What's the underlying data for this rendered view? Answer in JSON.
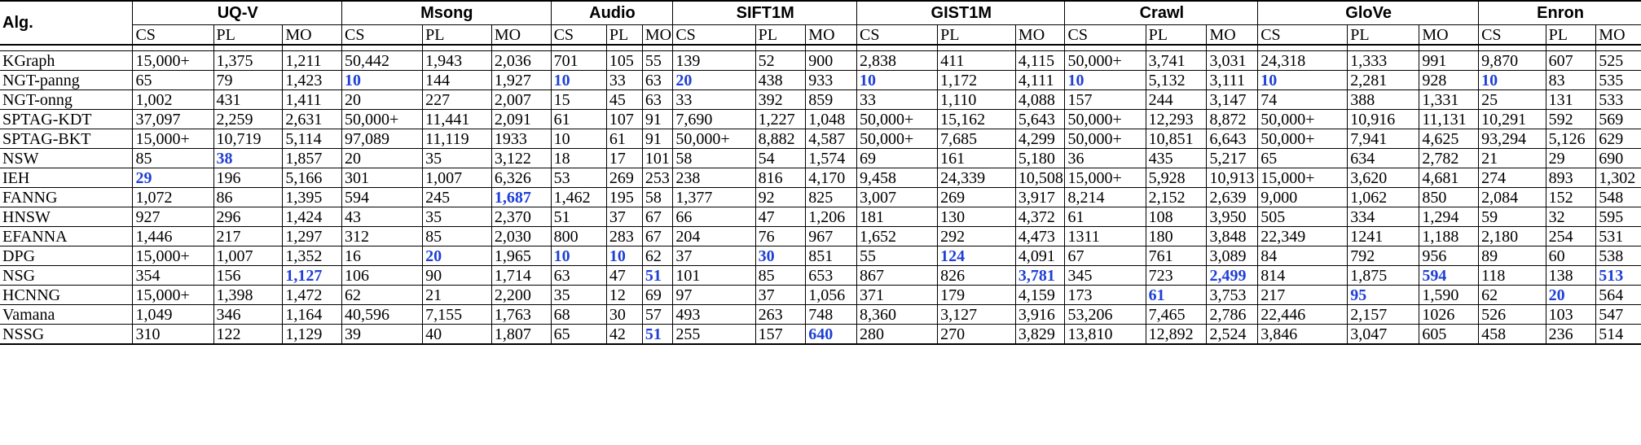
{
  "table": {
    "header_label": "Alg.",
    "datasets": [
      "UQ-V",
      "Msong",
      "Audio",
      "SIFT1M",
      "GIST1M",
      "Crawl",
      "GloVe",
      "Enron"
    ],
    "subcolumns": [
      "CS",
      "PL",
      "MO"
    ],
    "highlight_color": "#1f3fd6",
    "rows": [
      {
        "alg": "KGraph",
        "cells": [
          "15,000+",
          "1,375",
          "1,211",
          "50,442",
          "1,943",
          "2,036",
          "701",
          "105",
          "55",
          "139",
          "52",
          "900",
          "2,838",
          "411",
          "4,115",
          "50,000+",
          "3,741",
          "3,031",
          "24,318",
          "1,333",
          "991",
          "9,870",
          "607",
          "525"
        ],
        "best": []
      },
      {
        "alg": "NGT-panng",
        "cells": [
          "65",
          "79",
          "1,423",
          "10",
          "144",
          "1,927",
          "10",
          "33",
          "63",
          "20",
          "438",
          "933",
          "10",
          "1,172",
          "4,111",
          "10",
          "5,132",
          "3,111",
          "10",
          "2,281",
          "928",
          "10",
          "83",
          "535"
        ],
        "best": [
          3,
          6,
          9,
          12,
          15,
          18,
          21
        ]
      },
      {
        "alg": "NGT-onng",
        "cells": [
          "1,002",
          "431",
          "1,411",
          "20",
          "227",
          "2,007",
          "15",
          "45",
          "63",
          "33",
          "392",
          "859",
          "33",
          "1,110",
          "4,088",
          "157",
          "244",
          "3,147",
          "74",
          "388",
          "1,331",
          "25",
          "131",
          "533"
        ],
        "best": []
      },
      {
        "alg": "SPTAG-KDT",
        "cells": [
          "37,097",
          "2,259",
          "2,631",
          "50,000+",
          "11,441",
          "2,091",
          "61",
          "107",
          "91",
          "7,690",
          "1,227",
          "1,048",
          "50,000+",
          "15,162",
          "5,643",
          "50,000+",
          "12,293",
          "8,872",
          "50,000+",
          "10,916",
          "11,131",
          "10,291",
          "592",
          "569"
        ],
        "best": []
      },
      {
        "alg": "SPTAG-BKT",
        "cells": [
          "15,000+",
          "10,719",
          "5,114",
          "97,089",
          "11,119",
          "1933",
          "10",
          "61",
          "91",
          "50,000+",
          "8,882",
          "4,587",
          "50,000+",
          "7,685",
          "4,299",
          "50,000+",
          "10,851",
          "6,643",
          "50,000+",
          "7,941",
          "4,625",
          "93,294",
          "5,126",
          "629"
        ],
        "best": []
      },
      {
        "alg": "NSW",
        "cells": [
          "85",
          "38",
          "1,857",
          "20",
          "35",
          "3,122",
          "18",
          "17",
          "101",
          "58",
          "54",
          "1,574",
          "69",
          "161",
          "5,180",
          "36",
          "435",
          "5,217",
          "65",
          "634",
          "2,782",
          "21",
          "29",
          "690"
        ],
        "best": [
          1
        ]
      },
      {
        "alg": "IEH",
        "cells": [
          "29",
          "196",
          "5,166",
          "301",
          "1,007",
          "6,326",
          "53",
          "269",
          "253",
          "238",
          "816",
          "4,170",
          "9,458",
          "24,339",
          "10,508",
          "15,000+",
          "5,928",
          "10,913",
          "15,000+",
          "3,620",
          "4,681",
          "274",
          "893",
          "1,302"
        ],
        "best": [
          0
        ]
      },
      {
        "alg": "FANNG",
        "cells": [
          "1,072",
          "86",
          "1,395",
          "594",
          "245",
          "1,687",
          "1,462",
          "195",
          "58",
          "1,377",
          "92",
          "825",
          "3,007",
          "269",
          "3,917",
          "8,214",
          "2,152",
          "2,639",
          "9,000",
          "1,062",
          "850",
          "2,084",
          "152",
          "548"
        ],
        "best": [
          5
        ]
      },
      {
        "alg": "HNSW",
        "cells": [
          "927",
          "296",
          "1,424",
          "43",
          "35",
          "2,370",
          "51",
          "37",
          "67",
          "66",
          "47",
          "1,206",
          "181",
          "130",
          "4,372",
          "61",
          "108",
          "3,950",
          "505",
          "334",
          "1,294",
          "59",
          "32",
          "595"
        ],
        "best": []
      },
      {
        "alg": "EFANNA",
        "cells": [
          "1,446",
          "217",
          "1,297",
          "312",
          "85",
          "2,030",
          "800",
          "283",
          "67",
          "204",
          "76",
          "967",
          "1,652",
          "292",
          "4,473",
          "1311",
          "180",
          "3,848",
          "22,349",
          "1241",
          "1,188",
          "2,180",
          "254",
          "531"
        ],
        "best": []
      },
      {
        "alg": "DPG",
        "cells": [
          "15,000+",
          "1,007",
          "1,352",
          "16",
          "20",
          "1,965",
          "10",
          "10",
          "62",
          "37",
          "30",
          "851",
          "55",
          "124",
          "4,091",
          "67",
          "761",
          "3,089",
          "84",
          "792",
          "956",
          "89",
          "60",
          "538"
        ],
        "best": [
          4,
          6,
          7,
          10,
          13
        ]
      },
      {
        "alg": "NSG",
        "cells": [
          "354",
          "156",
          "1,127",
          "106",
          "90",
          "1,714",
          "63",
          "47",
          "51",
          "101",
          "85",
          "653",
          "867",
          "826",
          "3,781",
          "345",
          "723",
          "2,499",
          "814",
          "1,875",
          "594",
          "118",
          "138",
          "513"
        ],
        "best": [
          2,
          8,
          14,
          17,
          20,
          23
        ]
      },
      {
        "alg": "HCNNG",
        "cells": [
          "15,000+",
          "1,398",
          "1,472",
          "62",
          "21",
          "2,200",
          "35",
          "12",
          "69",
          "97",
          "37",
          "1,056",
          "371",
          "179",
          "4,159",
          "173",
          "61",
          "3,753",
          "217",
          "95",
          "1,590",
          "62",
          "20",
          "564"
        ],
        "best": [
          16,
          19,
          22
        ]
      },
      {
        "alg": "Vamana",
        "cells": [
          "1,049",
          "346",
          "1,164",
          "40,596",
          "7,155",
          "1,763",
          "68",
          "30",
          "57",
          "493",
          "263",
          "748",
          "8,360",
          "3,127",
          "3,916",
          "53,206",
          "7,465",
          "2,786",
          "22,446",
          "2,157",
          "1026",
          "526",
          "103",
          "547"
        ],
        "best": []
      },
      {
        "alg": "NSSG",
        "cells": [
          "310",
          "122",
          "1,129",
          "39",
          "40",
          "1,807",
          "65",
          "42",
          "51",
          "255",
          "157",
          "640",
          "280",
          "270",
          "3,829",
          "13,810",
          "12,892",
          "2,524",
          "3,846",
          "3,047",
          "605",
          "458",
          "236",
          "514"
        ],
        "best": [
          8,
          11
        ]
      }
    ]
  }
}
